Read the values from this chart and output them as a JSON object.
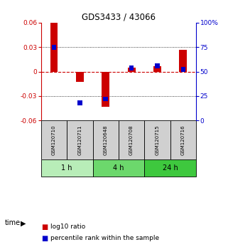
{
  "title": "GDS3433 / 43066",
  "samples": [
    "GSM120710",
    "GSM120711",
    "GSM120648",
    "GSM120708",
    "GSM120715",
    "GSM120716"
  ],
  "log10_ratio": [
    0.06,
    -0.013,
    -0.043,
    0.005,
    0.007,
    0.027
  ],
  "percentile_rank": [
    75,
    18,
    22,
    54,
    56,
    52
  ],
  "time_groups": [
    {
      "label": "1 h",
      "cols": [
        0,
        1
      ],
      "color": "#b8edb8"
    },
    {
      "label": "4 h",
      "cols": [
        2,
        3
      ],
      "color": "#6cd86c"
    },
    {
      "label": "24 h",
      "cols": [
        4,
        5
      ],
      "color": "#3ec83e"
    }
  ],
  "ylim_left": [
    -0.06,
    0.06
  ],
  "ylim_right": [
    0,
    100
  ],
  "yticks_left": [
    -0.06,
    -0.03,
    0,
    0.03,
    0.06
  ],
  "yticks_right": [
    0,
    25,
    50,
    75,
    100
  ],
  "ytick_labels_right": [
    "0",
    "25",
    "50",
    "75",
    "100%"
  ],
  "red_color": "#cc0000",
  "blue_color": "#0000cc",
  "background_color": "#ffffff",
  "sample_box_color": "#d0d0d0",
  "zero_line_color": "#cc0000",
  "legend_red": "log10 ratio",
  "legend_blue": "percentile rank within the sample",
  "time_label": "time"
}
